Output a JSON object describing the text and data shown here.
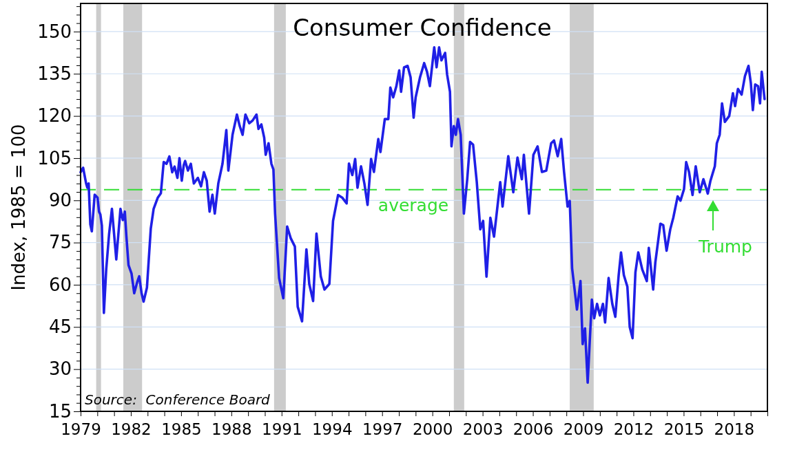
{
  "chart_data": {
    "type": "line",
    "title": "Consumer Confidence",
    "ylabel": "Index, 1985 = 100",
    "annotations": [
      "Source:  Conference Board",
      "Trump"
    ],
    "xlim": [
      1979,
      2020
    ],
    "ylim": [
      15,
      160
    ],
    "xticks": [
      1979,
      {
        "value": 1980,
        "label": null
      },
      {
        "value": 1981,
        "label": null
      },
      1982,
      {
        "value": 1983,
        "label": null
      },
      {
        "value": 1984,
        "label": null
      },
      1985,
      {
        "value": 1986,
        "label": null
      },
      {
        "value": 1987,
        "label": null
      },
      1988,
      {
        "value": 1989,
        "label": null
      },
      {
        "value": 1990,
        "label": null
      },
      1991,
      {
        "value": 1992,
        "label": null
      },
      {
        "value": 1993,
        "label": null
      },
      1994,
      {
        "value": 1995,
        "label": null
      },
      {
        "value": 1996,
        "label": null
      },
      1997,
      {
        "value": 1998,
        "label": null
      },
      {
        "value": 1999,
        "label": null
      },
      2000,
      {
        "value": 2001,
        "label": null
      },
      {
        "value": 2002,
        "label": null
      },
      2003,
      {
        "value": 2004,
        "label": null
      },
      {
        "value": 2005,
        "label": null
      },
      2006,
      {
        "value": 2007,
        "label": null
      },
      {
        "value": 2008,
        "label": null
      },
      2009,
      {
        "value": 2010,
        "label": null
      },
      {
        "value": 2011,
        "label": null
      },
      2012,
      {
        "value": 2013,
        "label": null
      },
      {
        "value": 2014,
        "label": null
      },
      2015,
      {
        "value": 2016,
        "label": null
      },
      {
        "value": 2017,
        "label": null
      },
      2018,
      {
        "value": 2019,
        "label": null
      },
      {
        "value": 2020,
        "label": null
      }
    ],
    "yticks": [
      15,
      {
        "value": 18,
        "label": null
      },
      {
        "value": 21,
        "label": null
      },
      {
        "value": 24,
        "label": null
      },
      {
        "value": 27,
        "label": null
      },
      30,
      {
        "value": 33,
        "label": null
      },
      {
        "value": 36,
        "label": null
      },
      {
        "value": 39,
        "label": null
      },
      {
        "value": 42,
        "label": null
      },
      45,
      {
        "value": 48,
        "label": null
      },
      {
        "value": 51,
        "label": null
      },
      {
        "value": 54,
        "label": null
      },
      {
        "value": 57,
        "label": null
      },
      60,
      {
        "value": 63,
        "label": null
      },
      {
        "value": 66,
        "label": null
      },
      {
        "value": 69,
        "label": null
      },
      {
        "value": 72,
        "label": null
      },
      75,
      {
        "value": 78,
        "label": null
      },
      {
        "value": 81,
        "label": null
      },
      {
        "value": 84,
        "label": null
      },
      {
        "value": 87,
        "label": null
      },
      90,
      {
        "value": 93,
        "label": null
      },
      {
        "value": 96,
        "label": null
      },
      {
        "value": 99,
        "label": null
      },
      {
        "value": 102,
        "label": null
      },
      105,
      {
        "value": 108,
        "label": null
      },
      {
        "value": 111,
        "label": null
      },
      {
        "value": 114,
        "label": null
      },
      {
        "value": 117,
        "label": null
      },
      120,
      {
        "value": 123,
        "label": null
      },
      {
        "value": 126,
        "label": null
      },
      {
        "value": 129,
        "label": null
      },
      {
        "value": 132,
        "label": null
      },
      135,
      {
        "value": 138,
        "label": null
      },
      {
        "value": 141,
        "label": null
      },
      {
        "value": 144,
        "label": null
      },
      {
        "value": 147,
        "label": null
      },
      150,
      {
        "value": 153,
        "label": null
      },
      {
        "value": 156,
        "label": null
      },
      {
        "value": 159,
        "label": null
      }
    ],
    "grid": "y",
    "ref_lines": [
      {
        "axis": "y",
        "value": 93.8,
        "label": "average",
        "color": "#33dd33",
        "line_style": "dashed"
      }
    ],
    "bands": [
      {
        "axis": "x",
        "from": 1979.93,
        "to": 1980.22,
        "color": "#cccccc"
      },
      {
        "axis": "x",
        "from": 1981.55,
        "to": 1982.67,
        "color": "#cccccc"
      },
      {
        "axis": "x",
        "from": 1990.55,
        "to": 1991.25,
        "color": "#cccccc"
      },
      {
        "axis": "x",
        "from": 2001.28,
        "to": 2001.9,
        "color": "#cccccc"
      },
      {
        "axis": "x",
        "from": 2008.2,
        "to": 2009.63,
        "color": "#cccccc"
      }
    ],
    "series": [
      {
        "color": "#1f1fe6",
        "x": [
          1979.0,
          1979.15,
          1979.33,
          1979.4,
          1979.48,
          1979.58,
          1979.67,
          1979.84,
          1980.01,
          1980.1,
          1980.18,
          1980.27,
          1980.39,
          1980.53,
          1980.7,
          1980.87,
          1981.13,
          1981.38,
          1981.52,
          1981.64,
          1981.73,
          1981.86,
          1982.04,
          1982.2,
          1982.38,
          1982.5,
          1982.64,
          1982.76,
          1982.96,
          1983.19,
          1983.36,
          1983.61,
          1983.79,
          1983.96,
          1984.13,
          1984.3,
          1984.47,
          1984.61,
          1984.78,
          1984.9,
          1985.04,
          1985.16,
          1985.24,
          1985.41,
          1985.58,
          1985.76,
          1986.0,
          1986.19,
          1986.36,
          1986.53,
          1986.7,
          1986.87,
          1987.01,
          1987.22,
          1987.47,
          1987.7,
          1987.82,
          1988.07,
          1988.33,
          1988.5,
          1988.67,
          1988.84,
          1989.07,
          1989.27,
          1989.5,
          1989.62,
          1989.79,
          1989.96,
          1990.05,
          1990.22,
          1990.39,
          1990.51,
          1990.61,
          1990.85,
          1991.1,
          1991.33,
          1991.54,
          1991.79,
          1991.96,
          1992.22,
          1992.48,
          1992.65,
          1992.88,
          1993.08,
          1993.34,
          1993.56,
          1993.85,
          1994.07,
          1994.37,
          1994.63,
          1994.88,
          1995.02,
          1995.22,
          1995.39,
          1995.53,
          1995.74,
          1995.94,
          1996.13,
          1996.34,
          1996.51,
          1996.77,
          1996.9,
          1997.16,
          1997.37,
          1997.49,
          1997.66,
          1997.85,
          1998.02,
          1998.13,
          1998.31,
          1998.52,
          1998.7,
          1998.88,
          1999.0,
          1999.26,
          1999.51,
          1999.68,
          1999.85,
          2000.11,
          2000.25,
          2000.4,
          2000.54,
          2000.76,
          2000.88,
          2001.05,
          2001.14,
          2001.28,
          2001.4,
          2001.53,
          2001.69,
          2001.88,
          2002.08,
          2002.25,
          2002.43,
          2002.65,
          2002.86,
          2003.03,
          2003.23,
          2003.46,
          2003.68,
          2004.05,
          2004.19,
          2004.53,
          2004.83,
          2005.08,
          2005.34,
          2005.46,
          2005.77,
          2006.03,
          2006.28,
          2006.54,
          2006.8,
          2007.09,
          2007.26,
          2007.48,
          2007.69,
          2007.86,
          2008.07,
          2008.2,
          2008.34,
          2008.63,
          2008.84,
          2008.97,
          2009.11,
          2009.27,
          2009.52,
          2009.66,
          2009.83,
          2010.0,
          2010.18,
          2010.31,
          2010.52,
          2010.74,
          2010.92,
          2011.12,
          2011.26,
          2011.43,
          2011.64,
          2011.78,
          2011.95,
          2012.12,
          2012.29,
          2012.53,
          2012.8,
          2012.92,
          2013.18,
          2013.31,
          2013.61,
          2013.78,
          2013.98,
          2014.2,
          2014.38,
          2014.64,
          2014.81,
          2015.02,
          2015.15,
          2015.32,
          2015.53,
          2015.72,
          2015.96,
          2016.18,
          2016.44,
          2016.6,
          2016.86,
          2016.98,
          2017.15,
          2017.29,
          2017.46,
          2017.72,
          2017.94,
          2018.07,
          2018.24,
          2018.46,
          2018.66,
          2018.87,
          2019.01,
          2019.13,
          2019.27,
          2019.44,
          2019.56,
          2019.66,
          2019.83
        ],
        "values": [
          100,
          101.6,
          96,
          94.5,
          96,
          81.5,
          79,
          92,
          91,
          86,
          85,
          81,
          50,
          65.5,
          78,
          87,
          69,
          87,
          83,
          86,
          77.5,
          67,
          64,
          57,
          61,
          63,
          57,
          54,
          59,
          80,
          87,
          91,
          92.5,
          103.6,
          103,
          105.6,
          100,
          102,
          98,
          105,
          97,
          102.6,
          104,
          100.6,
          103,
          96,
          98,
          95,
          100,
          97,
          86,
          92,
          85.3,
          96,
          103,
          115,
          100.6,
          113.3,
          120.5,
          116.4,
          113.3,
          120.5,
          117.4,
          118.4,
          120.5,
          115.4,
          117,
          112.3,
          106.2,
          110.3,
          103,
          101,
          85.3,
          62.4,
          55.2,
          80.7,
          76.6,
          73.6,
          52.2,
          47,
          72.6,
          60.3,
          54.2,
          78.2,
          62.9,
          58.3,
          60.3,
          82.7,
          91.9,
          90.9,
          88.9,
          103.1,
          99,
          104.7,
          94.5,
          102.1,
          96,
          88.4,
          104.7,
          100.1,
          111.8,
          107.2,
          118.9,
          118.9,
          130.1,
          126.6,
          130.6,
          136.2,
          128.6,
          137.3,
          137.8,
          133.7,
          119.4,
          126.6,
          133.7,
          138.8,
          135.7,
          130.6,
          144.4,
          137.3,
          144.4,
          139.8,
          142.4,
          134.7,
          128.6,
          109.2,
          116.4,
          113.3,
          118.9,
          113.3,
          85.3,
          97.5,
          110.8,
          109.8,
          96.5,
          79.7,
          82.7,
          62.9,
          83.8,
          77.1,
          96.5,
          87.8,
          105.7,
          92.9,
          105.2,
          97.5,
          106.2,
          85.3,
          106.2,
          109.2,
          100.1,
          100.6,
          110.3,
          111.3,
          105.7,
          111.8,
          100.1,
          87.8,
          89.8,
          65.9,
          51.2,
          61.3,
          38.9,
          44.5,
          25.2,
          54.7,
          48.1,
          53.2,
          49.1,
          53.2,
          46.6,
          62.4,
          53.2,
          48.6,
          63.4,
          71.5,
          63.4,
          59.3,
          45,
          41,
          64.4,
          71.5,
          65.4,
          61.3,
          73.1,
          58.3,
          68,
          81.7,
          81.2,
          72.1,
          79.7,
          83.8,
          91.4,
          89.9,
          94,
          103.6,
          100.1,
          91.9,
          102.1,
          92.9,
          97.5,
          92.4,
          97,
          102.1,
          110.3,
          113.3,
          124.5,
          117.9,
          120,
          128.1,
          123.5,
          129.6,
          127.6,
          134.2,
          137.8,
          131.7,
          122.1,
          131.2,
          130.6,
          124.5,
          135.7,
          126
        ]
      }
    ]
  }
}
